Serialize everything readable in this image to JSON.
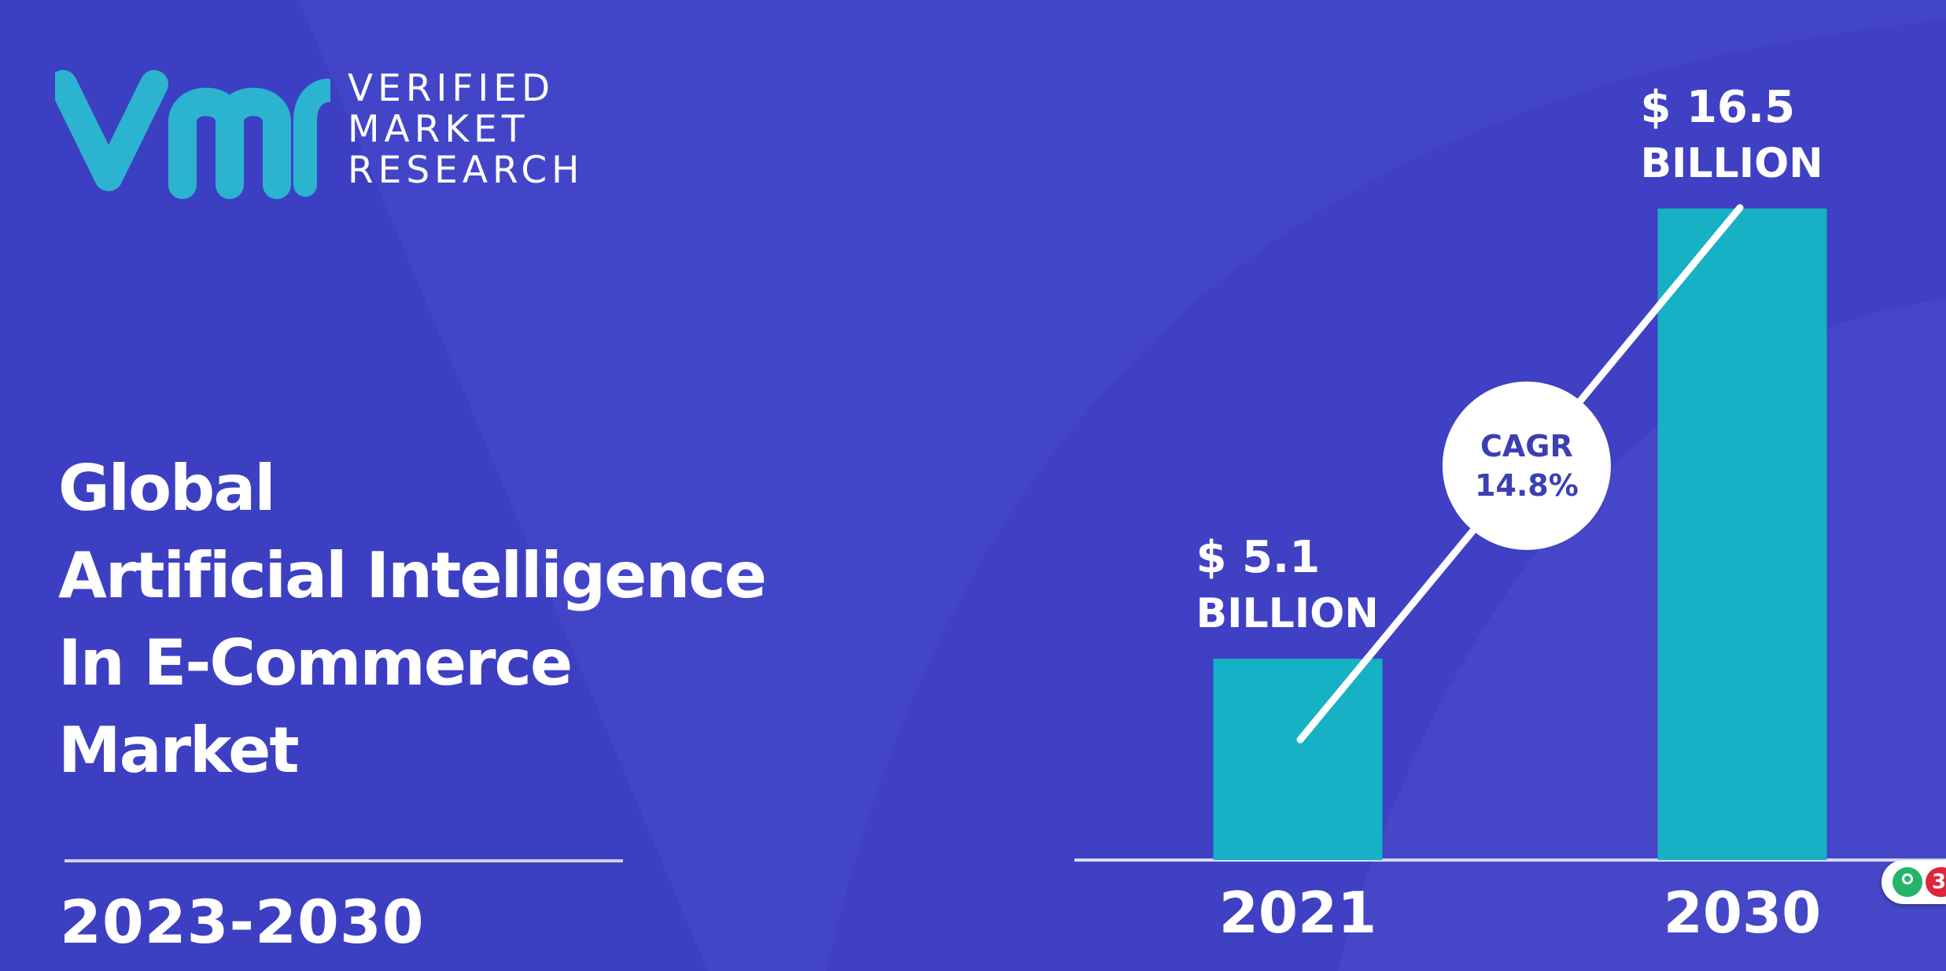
{
  "brand": {
    "lines": [
      "VERIFIED",
      "MARKET",
      "RESEARCH"
    ],
    "logo_icon": "vmr-logo-icon",
    "logo_color": "#2bb3cf"
  },
  "title": {
    "lines": [
      "Global",
      "Artificial Intelligence",
      "In E-Commerce",
      "Market"
    ]
  },
  "period": "2023-2030",
  "colors": {
    "background": "#4345c9",
    "bar": "#16b1c4",
    "cagr_text": "#3c3fb4"
  },
  "chart_data": {
    "type": "bar",
    "categories": [
      "2021",
      "2030"
    ],
    "values": [
      5.1,
      16.5
    ],
    "value_labels": [
      [
        "$ 5.1",
        "BILLION"
      ],
      [
        "$ 16.5",
        "BILLION"
      ]
    ],
    "annotation": {
      "lines": [
        "CAGR",
        "14.8%"
      ]
    },
    "ylim": [
      0,
      16.5
    ],
    "grid": false,
    "legend": "none"
  },
  "badge": {
    "icon": "notification-icon",
    "count": "3"
  }
}
